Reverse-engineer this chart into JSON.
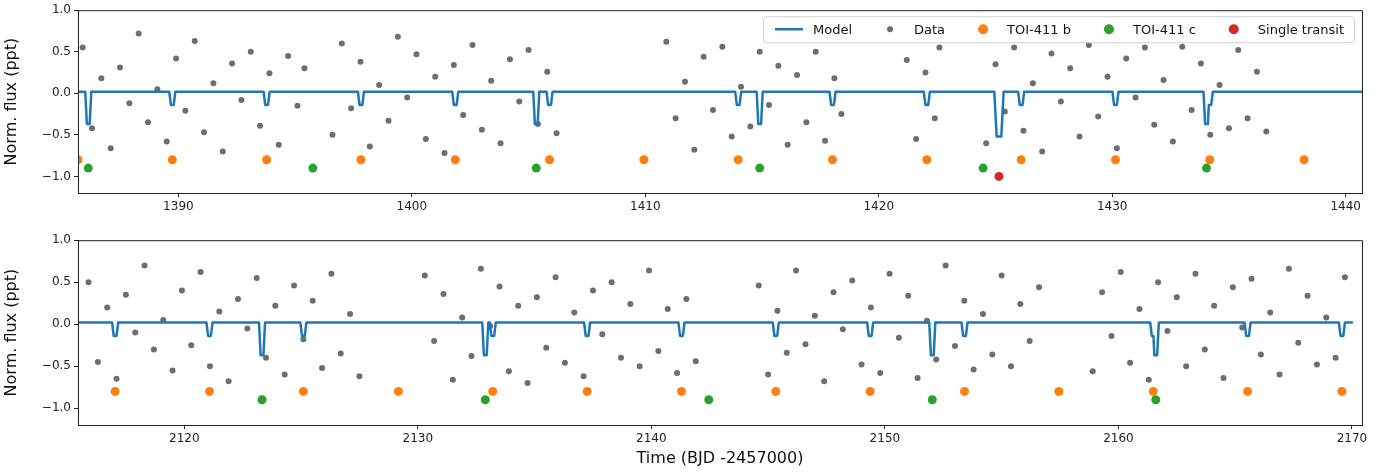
{
  "chart_data": [
    {
      "type": "scatter",
      "ylabel": "Norm. flux (ppt)",
      "xlim": [
        1385.7,
        1440.7
      ],
      "xticks": [
        1390,
        1400,
        1410,
        1420,
        1430,
        1440
      ],
      "ylim": [
        -1.2,
        1.0
      ],
      "yticks": [
        {
          "value": -1.0,
          "label": "−1.0"
        },
        {
          "value": -0.5,
          "label": "−0.5"
        },
        {
          "value": 0,
          "label": "0.0"
        },
        {
          "value": 0.5,
          "label": "0.5"
        },
        {
          "value": 1.0,
          "label": "1.0"
        }
      ],
      "grid": false,
      "legend": "top right",
      "marker": "circle",
      "series": [
        {
          "name": "Model",
          "type": "line",
          "marker": "none",
          "color": "#1f77b4",
          "x": [
            1385.7,
            1386.01,
            1386.08,
            1386.2,
            1386.27,
            1389.61,
            1389.68,
            1389.8,
            1389.87,
            1393.65,
            1393.72,
            1393.84,
            1393.91,
            1397.69,
            1397.76,
            1397.88,
            1397.95,
            1401.73,
            1401.8,
            1401.92,
            1401.99,
            1405.2,
            1405.27,
            1405.39,
            1405.46,
            1405.77,
            1405.84,
            1405.96,
            1406.03,
            1413.85,
            1413.92,
            1414.04,
            1414.11,
            1414.77,
            1414.84,
            1414.96,
            1415.03,
            1417.89,
            1417.96,
            1418.08,
            1418.15,
            1421.93,
            1422.0,
            1422.12,
            1422.19,
            1424.95,
            1425.05,
            1425.25,
            1425.35,
            1425.97,
            1426.04,
            1426.16,
            1426.23,
            1430.01,
            1430.08,
            1430.2,
            1430.27,
            1433.91,
            1433.98,
            1434.1,
            1434.14,
            1434.24,
            1434.31,
            1440.7
          ],
          "values": [
            0.02,
            0.02,
            -0.37,
            -0.37,
            0.02,
            0.02,
            -0.14,
            -0.14,
            0.02,
            0.02,
            -0.14,
            -0.14,
            0.02,
            0.02,
            -0.14,
            -0.14,
            0.02,
            0.02,
            -0.14,
            -0.14,
            0.02,
            0.02,
            -0.37,
            -0.37,
            0.02,
            0.02,
            -0.14,
            -0.14,
            0.02,
            0.02,
            -0.14,
            -0.14,
            0.02,
            0.02,
            -0.37,
            -0.37,
            0.02,
            0.02,
            -0.14,
            -0.14,
            0.02,
            0.02,
            -0.14,
            -0.14,
            0.02,
            0.02,
            -0.52,
            -0.52,
            0.02,
            0.02,
            -0.14,
            -0.14,
            0.02,
            0.02,
            -0.14,
            -0.14,
            0.02,
            0.02,
            -0.37,
            -0.37,
            -0.14,
            -0.14,
            0.02,
            0.02
          ]
        },
        {
          "name": "Data",
          "type": "scatter",
          "color": "#6e6e6e",
          "x": [
            1385.9,
            1386.3,
            1386.7,
            1387.1,
            1387.5,
            1387.9,
            1388.3,
            1388.7,
            1389.1,
            1389.5,
            1389.9,
            1390.3,
            1390.7,
            1391.1,
            1391.5,
            1391.9,
            1392.3,
            1392.7,
            1393.1,
            1393.5,
            1393.9,
            1394.3,
            1394.7,
            1395.1,
            1395.4,
            1396.6,
            1397.0,
            1397.4,
            1397.8,
            1398.2,
            1398.6,
            1399.0,
            1399.4,
            1399.8,
            1400.2,
            1400.6,
            1401.0,
            1401.4,
            1401.8,
            1402.2,
            1402.6,
            1403.0,
            1403.4,
            1403.8,
            1404.2,
            1404.6,
            1405.0,
            1405.4,
            1405.8,
            1406.2,
            1410.9,
            1411.3,
            1411.7,
            1412.1,
            1412.5,
            1412.9,
            1413.3,
            1413.7,
            1414.1,
            1414.5,
            1414.9,
            1415.3,
            1415.7,
            1416.1,
            1416.5,
            1416.9,
            1417.3,
            1417.7,
            1418.1,
            1418.4,
            1421.2,
            1421.6,
            1422.0,
            1422.4,
            1422.6,
            1424.6,
            1425.0,
            1425.4,
            1425.8,
            1426.2,
            1426.6,
            1427.0,
            1427.4,
            1427.8,
            1428.2,
            1428.6,
            1429.0,
            1429.4,
            1429.8,
            1430.2,
            1430.6,
            1431.0,
            1431.4,
            1431.8,
            1432.2,
            1432.6,
            1433.0,
            1433.4,
            1433.8,
            1434.2,
            1434.6,
            1435.0,
            1435.4,
            1435.8,
            1436.2,
            1436.6
          ],
          "values": [
            0.55,
            -0.42,
            0.18,
            -0.66,
            0.31,
            -0.12,
            0.72,
            -0.35,
            0.05,
            -0.58,
            0.42,
            -0.21,
            0.63,
            -0.47,
            0.12,
            -0.7,
            0.36,
            -0.08,
            0.5,
            -0.39,
            0.24,
            -0.62,
            0.45,
            -0.15,
            0.3,
            -0.5,
            0.6,
            -0.18,
            0.38,
            -0.64,
            0.1,
            -0.33,
            0.68,
            -0.05,
            0.47,
            -0.55,
            0.2,
            -0.72,
            0.34,
            -0.26,
            0.58,
            -0.44,
            0.15,
            -0.6,
            0.41,
            -0.1,
            0.52,
            -0.37,
            0.26,
            -0.48,
            0.62,
            -0.3,
            0.14,
            -0.68,
            0.44,
            -0.2,
            0.56,
            -0.52,
            0.08,
            -0.4,
            0.5,
            -0.14,
            0.33,
            -0.62,
            0.22,
            -0.35,
            0.5,
            -0.57,
            0.18,
            -0.25,
            0.4,
            -0.55,
            0.25,
            -0.3,
            0.55,
            -0.6,
            0.35,
            -0.22,
            0.55,
            -0.45,
            0.12,
            -0.7,
            0.48,
            -0.1,
            0.3,
            -0.52,
            0.58,
            -0.28,
            0.2,
            -0.66,
            0.42,
            -0.05,
            0.55,
            -0.38,
            0.16,
            -0.58,
            0.56,
            -0.2,
            0.36,
            -0.5,
            0.1,
            -0.42,
            0.52,
            -0.3,
            0.26,
            -0.46
          ]
        },
        {
          "name": "TOI-411 b",
          "color": "#ff7f0e",
          "x": [
            1385.7,
            1389.74,
            1393.78,
            1397.82,
            1401.86,
            1405.9,
            1409.94,
            1413.98,
            1418.02,
            1422.06,
            1426.1,
            1430.14,
            1434.18,
            1438.22
          ],
          "values": [
            -0.8,
            -0.8,
            -0.8,
            -0.8,
            -0.8,
            -0.8,
            -0.8,
            -0.8,
            -0.8,
            -0.8,
            -0.8,
            -0.8,
            -0.8,
            -0.8
          ]
        },
        {
          "name": "TOI-411 c",
          "color": "#2ca02c",
          "x": [
            1386.14,
            1395.76,
            1405.33,
            1414.9,
            1424.47,
            1434.04
          ],
          "values": [
            -0.9,
            -0.9,
            -0.9,
            -0.9,
            -0.9,
            -0.9
          ]
        },
        {
          "name": "Single transit",
          "color": "#d62728",
          "x": [
            1425.15
          ],
          "values": [
            -1.0
          ]
        }
      ]
    },
    {
      "type": "scatter",
      "xlabel": "Time (BJD -2457000)",
      "ylabel": "Norm. flux (ppt)",
      "xlim": [
        2115.45,
        2170.43
      ],
      "xticks": [
        2120,
        2130,
        2140,
        2150,
        2160,
        2170
      ],
      "ylim": [
        -1.2,
        1.0
      ],
      "yticks": [
        {
          "value": -1.0,
          "label": "−1.0"
        },
        {
          "value": -0.5,
          "label": "−0.5"
        },
        {
          "value": 0,
          "label": "0.0"
        },
        {
          "value": 0.5,
          "label": "0.5"
        },
        {
          "value": 1.0,
          "label": "1.0"
        }
      ],
      "grid": false,
      "marker": "circle",
      "series": [
        {
          "type": "line",
          "marker": "none",
          "color": "#1f77b4",
          "x": [
            2115.45,
            2116.91,
            2116.98,
            2117.1,
            2117.17,
            2120.95,
            2121.02,
            2121.14,
            2121.21,
            2123.2,
            2123.27,
            2123.39,
            2123.46,
            2124.97,
            2125.04,
            2125.16,
            2125.23,
            2132.76,
            2132.83,
            2132.95,
            2133.02,
            2133.08,
            2133.15,
            2133.27,
            2133.34,
            2137.12,
            2137.19,
            2137.31,
            2137.38,
            2141.16,
            2141.23,
            2141.35,
            2141.42,
            2145.2,
            2145.27,
            2145.39,
            2145.46,
            2149.24,
            2149.31,
            2149.43,
            2149.5,
            2151.9,
            2151.97,
            2152.09,
            2152.16,
            2153.28,
            2153.35,
            2153.47,
            2153.54,
            2161.36,
            2161.43,
            2161.5,
            2161.54,
            2161.66,
            2161.73,
            2165.4,
            2165.47,
            2165.59,
            2165.66,
            2169.44,
            2169.51,
            2169.63,
            2169.7,
            2170.0
          ],
          "values": [
            0.02,
            0.02,
            -0.14,
            -0.14,
            0.02,
            0.02,
            -0.14,
            -0.14,
            0.02,
            0.02,
            -0.37,
            -0.37,
            0.02,
            0.02,
            -0.14,
            -0.14,
            0.02,
            0.02,
            -0.37,
            -0.37,
            0.02,
            0.02,
            -0.14,
            -0.14,
            0.02,
            0.02,
            -0.14,
            -0.14,
            0.02,
            0.02,
            -0.14,
            -0.14,
            0.02,
            0.02,
            -0.14,
            -0.14,
            0.02,
            0.02,
            -0.14,
            -0.14,
            0.02,
            0.02,
            -0.37,
            -0.37,
            0.02,
            0.02,
            -0.14,
            -0.14,
            0.02,
            0.02,
            -0.14,
            -0.14,
            -0.37,
            -0.37,
            0.02,
            0.02,
            -0.14,
            -0.14,
            0.02,
            0.02,
            -0.14,
            -0.14,
            0.02,
            0.02
          ]
        },
        {
          "type": "scatter",
          "color": "#6e6e6e",
          "x": [
            2115.9,
            2116.3,
            2116.7,
            2117.1,
            2117.5,
            2117.9,
            2118.3,
            2118.7,
            2119.1,
            2119.5,
            2119.9,
            2120.3,
            2120.7,
            2121.1,
            2121.5,
            2121.9,
            2122.3,
            2122.7,
            2123.1,
            2123.5,
            2123.9,
            2124.3,
            2124.7,
            2125.1,
            2125.5,
            2125.9,
            2126.3,
            2126.7,
            2127.1,
            2127.5,
            2130.3,
            2130.7,
            2131.1,
            2131.5,
            2131.9,
            2132.3,
            2132.7,
            2133.1,
            2133.5,
            2133.9,
            2134.3,
            2134.7,
            2135.1,
            2135.5,
            2135.9,
            2136.3,
            2136.7,
            2137.1,
            2137.5,
            2137.9,
            2138.3,
            2138.7,
            2139.1,
            2139.5,
            2139.9,
            2140.3,
            2140.7,
            2141.1,
            2141.5,
            2141.9,
            2144.6,
            2145.0,
            2145.4,
            2145.8,
            2146.2,
            2146.6,
            2147.0,
            2147.4,
            2147.8,
            2148.2,
            2148.6,
            2149.0,
            2149.4,
            2149.8,
            2150.2,
            2150.6,
            2151.0,
            2151.4,
            2151.8,
            2152.2,
            2152.6,
            2153.0,
            2153.4,
            2153.8,
            2154.2,
            2154.6,
            2155.0,
            2155.4,
            2155.8,
            2156.2,
            2156.6,
            2158.9,
            2159.3,
            2159.7,
            2160.1,
            2160.5,
            2160.9,
            2161.3,
            2161.7,
            2162.1,
            2162.5,
            2162.9,
            2163.3,
            2163.7,
            2164.1,
            2164.5,
            2164.9,
            2165.3,
            2165.7,
            2166.1,
            2166.5,
            2166.9,
            2167.3,
            2167.7,
            2168.1,
            2168.5,
            2168.9,
            2169.3,
            2169.7
          ],
          "values": [
            0.5,
            -0.45,
            0.2,
            -0.65,
            0.35,
            -0.1,
            0.7,
            -0.3,
            0.05,
            -0.55,
            0.4,
            -0.25,
            0.62,
            -0.5,
            0.15,
            -0.68,
            0.3,
            -0.05,
            0.55,
            -0.4,
            0.22,
            -0.6,
            0.46,
            -0.18,
            0.28,
            -0.52,
            0.6,
            -0.35,
            0.12,
            -0.62,
            0.58,
            -0.2,
            0.36,
            -0.66,
            0.08,
            -0.38,
            0.66,
            -0.02,
            0.45,
            -0.56,
            0.22,
            -0.7,
            0.32,
            -0.28,
            0.56,
            -0.46,
            0.14,
            -0.62,
            0.4,
            -0.12,
            0.5,
            -0.4,
            0.24,
            -0.5,
            0.64,
            -0.32,
            0.18,
            -0.58,
            0.3,
            -0.44,
            0.46,
            -0.6,
            0.16,
            -0.34,
            0.64,
            -0.24,
            0.1,
            -0.68,
            0.38,
            -0.06,
            0.52,
            -0.48,
            0.2,
            -0.58,
            0.6,
            -0.16,
            0.34,
            -0.64,
            0.04,
            -0.42,
            0.7,
            -0.26,
            0.28,
            -0.54,
            0.12,
            -0.36,
            0.58,
            -0.5,
            0.24,
            -0.2,
            0.44,
            -0.56,
            0.38,
            -0.14,
            0.62,
            -0.46,
            0.18,
            -0.66,
            0.5,
            -0.08,
            0.32,
            -0.5,
            0.6,
            -0.3,
            0.22,
            -0.64,
            0.44,
            -0.04,
            0.54,
            -0.36,
            0.14,
            -0.6,
            0.66,
            -0.22,
            0.34,
            -0.48,
            0.08,
            -0.4,
            0.56
          ]
        },
        {
          "color": "#ff7f0e",
          "x": [
            2117.04,
            2121.08,
            2125.1,
            2129.17,
            2133.21,
            2137.25,
            2141.29,
            2145.33,
            2149.37,
            2153.41,
            2157.45,
            2161.49,
            2165.53,
            2169.57
          ],
          "values": [
            -0.8,
            -0.8,
            -0.8,
            -0.8,
            -0.8,
            -0.8,
            -0.8,
            -0.8,
            -0.8,
            -0.8,
            -0.8,
            -0.8,
            -0.8,
            -0.8
          ]
        },
        {
          "color": "#2ca02c",
          "x": [
            2123.33,
            2132.89,
            2142.46,
            2152.03,
            2161.6
          ],
          "values": [
            -0.9,
            -0.9,
            -0.9,
            -0.9,
            -0.9
          ]
        }
      ]
    }
  ]
}
